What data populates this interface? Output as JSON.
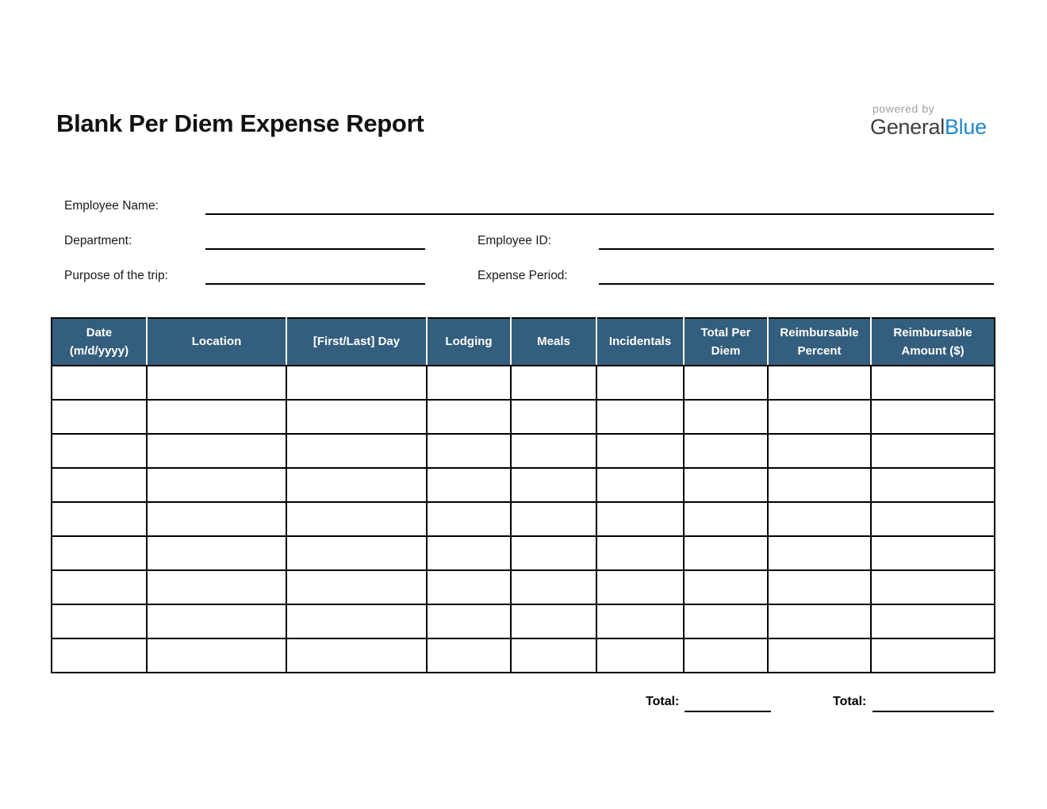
{
  "page": {
    "title": "Blank Per Diem Expense Report"
  },
  "logo": {
    "powered_by": "powered by",
    "brand_part1": "General",
    "brand_part2": "Blue",
    "brand_blue_color": "#1e87d0",
    "brand_dark_color": "#3f3f3f",
    "powered_by_color": "#9e9e9e"
  },
  "form": {
    "employee_name_label": "Employee Name:",
    "department_label": "Department:",
    "employee_id_label": "Employee ID:",
    "purpose_label": "Purpose of the trip:",
    "expense_period_label": "Expense Period:",
    "employee_name_value": "",
    "department_value": "",
    "employee_id_value": "",
    "purpose_value": "",
    "expense_period_value": ""
  },
  "table": {
    "header_bg": "#345e7d",
    "header_text_color": "#ffffff",
    "border_color": "#000000",
    "row_count": 9,
    "columns": [
      "Date (m/d/yyyy)",
      "Location",
      "[First/Last] Day",
      "Lodging",
      "Meals",
      "Incidentals",
      "Total Per Diem",
      "Reimbursable Percent",
      "Reimbursable Amount ($)"
    ],
    "rows": [
      [
        "",
        "",
        "",
        "",
        "",
        "",
        "",
        "",
        ""
      ],
      [
        "",
        "",
        "",
        "",
        "",
        "",
        "",
        "",
        ""
      ],
      [
        "",
        "",
        "",
        "",
        "",
        "",
        "",
        "",
        ""
      ],
      [
        "",
        "",
        "",
        "",
        "",
        "",
        "",
        "",
        ""
      ],
      [
        "",
        "",
        "",
        "",
        "",
        "",
        "",
        "",
        ""
      ],
      [
        "",
        "",
        "",
        "",
        "",
        "",
        "",
        "",
        ""
      ],
      [
        "",
        "",
        "",
        "",
        "",
        "",
        "",
        "",
        ""
      ],
      [
        "",
        "",
        "",
        "",
        "",
        "",
        "",
        "",
        ""
      ],
      [
        "",
        "",
        "",
        "",
        "",
        "",
        "",
        "",
        ""
      ]
    ]
  },
  "totals": {
    "per_diem_total_label": "Total:",
    "per_diem_total_value": "",
    "reimbursable_total_label": "Total:",
    "reimbursable_total_value": ""
  }
}
